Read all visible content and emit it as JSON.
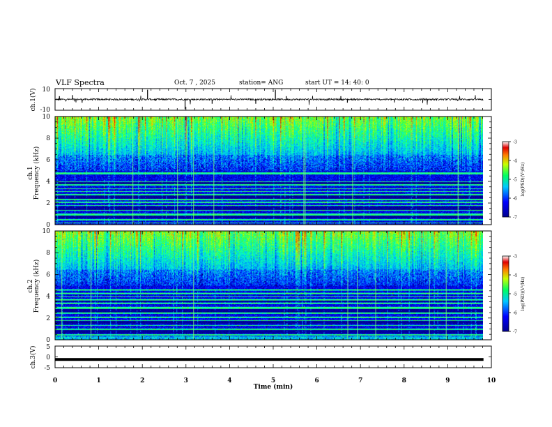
{
  "header": {
    "title": "VLF Spectra",
    "date": "Oct. 7 , 2025",
    "station": "station= ANG",
    "start": "start UT = 14: 40: 0"
  },
  "chart_data": [
    {
      "id": "ch1_waveform",
      "type": "line",
      "ylabel": "ch.1(V)",
      "ylim": [
        -10,
        10
      ],
      "yticks": [
        "10",
        "-10"
      ],
      "baseline": 0,
      "x_range_min": [
        0,
        9.82
      ]
    },
    {
      "id": "ch1_spectrogram",
      "type": "heatmap",
      "ylabel_line1": "ch.1",
      "ylabel_line2": "Frequency (kHz)",
      "ylim": [
        0,
        10
      ],
      "yticks": [
        "0",
        "2",
        "4",
        "6",
        "8",
        "10"
      ],
      "colorbar": {
        "label": "log(PSD)(V²/Hz)",
        "range": [
          -7,
          -3
        ],
        "ticks": [
          "-3",
          "-4",
          "-5",
          "-6",
          "-7"
        ]
      }
    },
    {
      "id": "ch2_spectrogram",
      "type": "heatmap",
      "ylabel_line1": "ch.2",
      "ylabel_line2": "Frequency (kHz)",
      "ylim": [
        0,
        10
      ],
      "yticks": [
        "0",
        "2",
        "4",
        "6",
        "8",
        "10"
      ],
      "colorbar": {
        "label": "log(PSD)(V²/Hz)",
        "range": [
          -7,
          -3
        ],
        "ticks": [
          "-3",
          "-4",
          "-5",
          "-6",
          "-7"
        ]
      }
    },
    {
      "id": "ch3_waveform",
      "type": "line",
      "ylabel": "ch.3(V)",
      "ylim": [
        -5,
        5
      ],
      "yticks": [
        "5",
        "0",
        "-5"
      ],
      "baseline": -1.2
    }
  ],
  "xaxis": {
    "label": "Time (min)",
    "range": [
      0,
      10
    ],
    "ticks": [
      "0",
      "1",
      "2",
      "3",
      "4",
      "5",
      "6",
      "7",
      "8",
      "9",
      "10"
    ],
    "data_end": 9.82
  }
}
